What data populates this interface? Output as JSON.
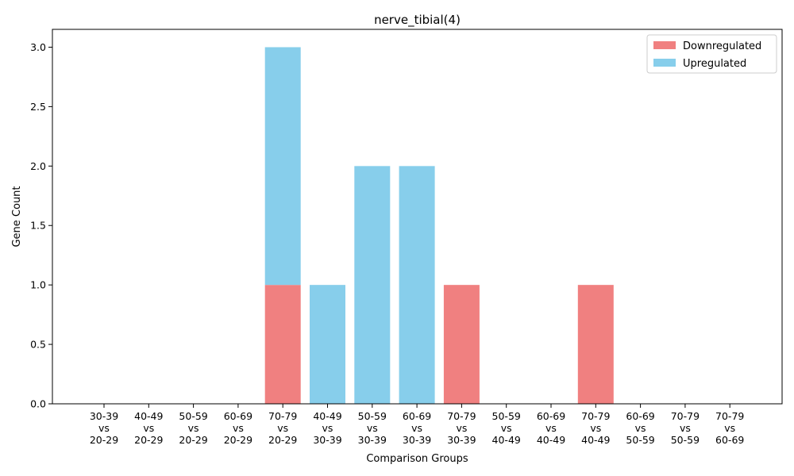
{
  "chart_data": {
    "type": "bar",
    "stacked": true,
    "title": "nerve_tibial(4)",
    "xlabel": "Comparison Groups",
    "ylabel": "Gene Count",
    "ylim": [
      0,
      3.15
    ],
    "yticks": [
      "0.0",
      "0.5",
      "1.0",
      "1.5",
      "2.0",
      "2.5",
      "3.0"
    ],
    "categories": [
      [
        "30-39",
        "vs",
        "20-29"
      ],
      [
        "40-49",
        "vs",
        "20-29"
      ],
      [
        "50-59",
        "vs",
        "20-29"
      ],
      [
        "60-69",
        "vs",
        "20-29"
      ],
      [
        "70-79",
        "vs",
        "20-29"
      ],
      [
        "40-49",
        "vs",
        "30-39"
      ],
      [
        "50-59",
        "vs",
        "30-39"
      ],
      [
        "60-69",
        "vs",
        "30-39"
      ],
      [
        "70-79",
        "vs",
        "30-39"
      ],
      [
        "50-59",
        "vs",
        "40-49"
      ],
      [
        "60-69",
        "vs",
        "40-49"
      ],
      [
        "70-79",
        "vs",
        "40-49"
      ],
      [
        "60-69",
        "vs",
        "50-59"
      ],
      [
        "70-79",
        "vs",
        "50-59"
      ],
      [
        "70-79",
        "vs",
        "60-69"
      ]
    ],
    "series": [
      {
        "name": "Downregulated",
        "color": "#f08080",
        "values": [
          0,
          0,
          0,
          0,
          1,
          0,
          0,
          0,
          1,
          0,
          0,
          1,
          0,
          0,
          0
        ]
      },
      {
        "name": "Upregulated",
        "color": "#87ceeb",
        "values": [
          0,
          0,
          0,
          0,
          2,
          1,
          2,
          2,
          0,
          0,
          0,
          0,
          0,
          0,
          0
        ]
      }
    ],
    "legend_position": "top-right",
    "grid": false
  }
}
